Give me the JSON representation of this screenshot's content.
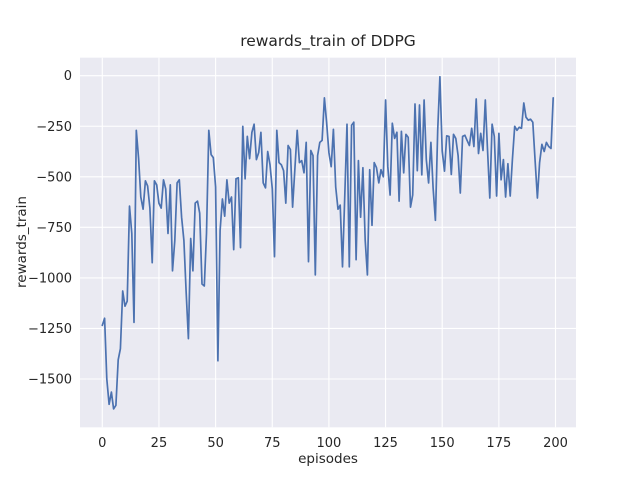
{
  "figure": {
    "title": "rewards_train of DDPG"
  },
  "chart_data": {
    "type": "line",
    "title": "rewards_train of DDPG",
    "xlabel": "episodes",
    "ylabel": "rewards_train",
    "series_name": "rewards_train",
    "x_start": 0,
    "x_step": 1,
    "values": [
      -1235,
      -1200,
      -1500,
      -1625,
      -1565,
      -1648,
      -1630,
      -1405,
      -1350,
      -1065,
      -1140,
      -1115,
      -645,
      -780,
      -1220,
      -270,
      -410,
      -600,
      -660,
      -520,
      -545,
      -655,
      -925,
      -520,
      -540,
      -630,
      -655,
      -515,
      -560,
      -780,
      -540,
      -965,
      -815,
      -530,
      -515,
      -700,
      -815,
      -1065,
      -1300,
      -805,
      -965,
      -630,
      -620,
      -680,
      -1030,
      -1040,
      -780,
      -270,
      -390,
      -405,
      -550,
      -1410,
      -765,
      -610,
      -695,
      -515,
      -630,
      -600,
      -860,
      -510,
      -505,
      -850,
      -250,
      -510,
      -300,
      -410,
      -280,
      -240,
      -415,
      -380,
      -280,
      -530,
      -555,
      -375,
      -440,
      -560,
      -895,
      -270,
      -430,
      -440,
      -470,
      -630,
      -345,
      -365,
      -650,
      -460,
      -270,
      -430,
      -420,
      -480,
      -330,
      -920,
      -370,
      -395,
      -985,
      -395,
      -330,
      -320,
      -110,
      -230,
      -380,
      -450,
      -265,
      -550,
      -660,
      -640,
      -945,
      -590,
      -240,
      -945,
      -245,
      -230,
      -910,
      -420,
      -700,
      -455,
      -815,
      -985,
      -465,
      -740,
      -430,
      -455,
      -530,
      -465,
      -500,
      -120,
      -450,
      -590,
      -235,
      -310,
      -280,
      -620,
      -275,
      -480,
      -290,
      -305,
      -650,
      -590,
      -140,
      -470,
      -145,
      -490,
      -120,
      -415,
      -530,
      -330,
      -555,
      -715,
      -270,
      -5,
      -372,
      -472,
      -297,
      -300,
      -488,
      -290,
      -310,
      -395,
      -580,
      -300,
      -295,
      -320,
      -345,
      -260,
      -350,
      -115,
      -385,
      -285,
      -370,
      -120,
      -365,
      -605,
      -240,
      -300,
      -595,
      -285,
      -515,
      -415,
      -600,
      -435,
      -595,
      -415,
      -250,
      -270,
      -255,
      -260,
      -135,
      -205,
      -220,
      -215,
      -230,
      -420,
      -605,
      -430,
      -340,
      -375,
      -330,
      -350,
      -360,
      -110
    ],
    "x_ticks": {
      "values": [
        0,
        25,
        50,
        75,
        100,
        125,
        150,
        175,
        200
      ],
      "labels": [
        "0",
        "25",
        "50",
        "75",
        "100",
        "125",
        "150",
        "175",
        "200"
      ]
    },
    "y_ticks": {
      "values": [
        0,
        -250,
        -500,
        -750,
        -1000,
        -1250,
        -1500
      ],
      "labels": [
        "0",
        "−250",
        "−500",
        "−750",
        "−1000",
        "−1250",
        "−1500"
      ]
    },
    "xlim": [
      -10,
      209
    ],
    "ylim": [
      -1738,
      89
    ],
    "grid": true,
    "legend_position": "none",
    "style": {
      "line_color": "#4C72B0",
      "axes_background": "#EAEAF2",
      "grid_color": "#FFFFFF",
      "text_color": "#262626"
    }
  }
}
